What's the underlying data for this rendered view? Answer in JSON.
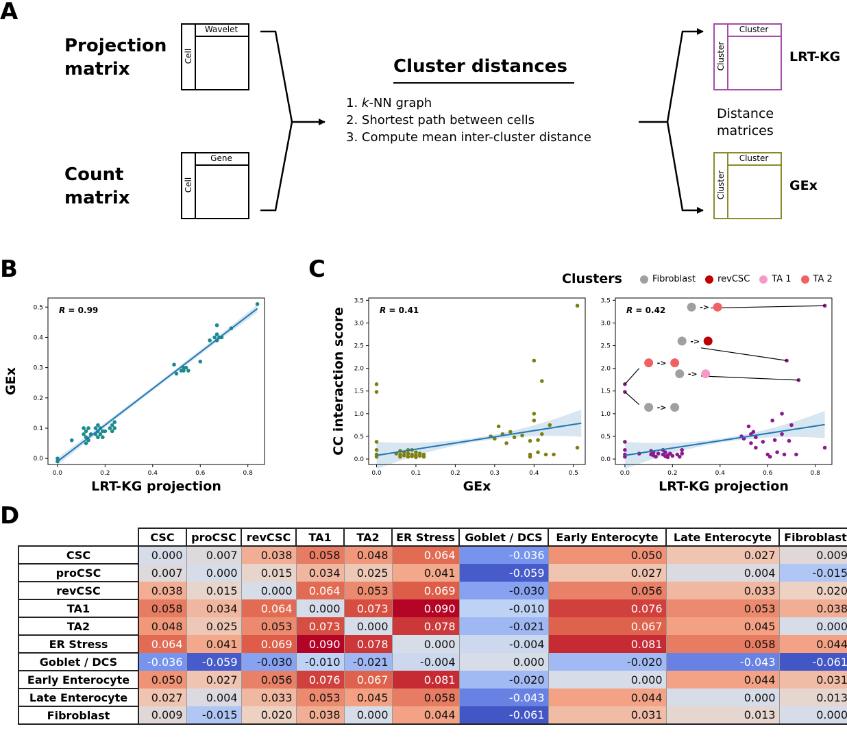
{
  "panels": {
    "a": "A",
    "b": "B",
    "c": "C",
    "d": "D"
  },
  "panel_a": {
    "projection_label_1": "Projection",
    "projection_label_2": "matrix",
    "count_label_1": "Count",
    "count_label_2": "matrix",
    "projection_matrix": {
      "col": "Wavelet",
      "row": "Cell"
    },
    "count_matrix": {
      "col": "Gene",
      "row": "Cell"
    },
    "title": "Cluster distances",
    "steps": [
      "1. ",
      "k",
      "-NN graph",
      "2. Shortest path between cells",
      "3. Compute mean inter-cluster distance"
    ],
    "lrt_matrix": {
      "col": "Cluster",
      "row": "Cluster",
      "label": "LRT-KG",
      "color": "#a64ca6"
    },
    "gex_matrix": {
      "col": "Cluster",
      "row": "Cluster",
      "label": "GEx",
      "color": "#8b8b2a"
    },
    "distance_label_1": "Distance",
    "distance_label_2": "matrices"
  },
  "chart_data": [
    {
      "id": "B",
      "type": "scatter",
      "xlabel": "LRT-KG projection",
      "ylabel": "GEx",
      "annotation": "R = 0.99",
      "annotation_italic": "R",
      "annotation_rest": " = 0.99",
      "xlim": [
        -0.04,
        0.87
      ],
      "ylim": [
        -0.02,
        0.53
      ],
      "xticks": [
        "0.0",
        "0.2",
        "0.4",
        "0.6",
        "0.8"
      ],
      "xtick_values": [
        0.0,
        0.2,
        0.4,
        0.6,
        0.8
      ],
      "yticks": [
        "0.0",
        "0.1",
        "0.2",
        "0.3",
        "0.4",
        "0.5"
      ],
      "ytick_values": [
        0.0,
        0.1,
        0.2,
        0.3,
        0.4,
        0.5
      ],
      "color": "#1a8a8a",
      "fit": [
        [
          0.0,
          -0.01
        ],
        [
          0.84,
          0.495
        ]
      ],
      "points": [
        [
          0.0,
          0.0
        ],
        [
          0.0,
          -0.01
        ],
        [
          0.06,
          0.06
        ],
        [
          0.11,
          0.08
        ],
        [
          0.11,
          0.1
        ],
        [
          0.12,
          0.05
        ],
        [
          0.12,
          0.07
        ],
        [
          0.12,
          0.09
        ],
        [
          0.13,
          0.06
        ],
        [
          0.13,
          0.1
        ],
        [
          0.14,
          0.08
        ],
        [
          0.16,
          0.08
        ],
        [
          0.16,
          0.1
        ],
        [
          0.17,
          0.07
        ],
        [
          0.17,
          0.09
        ],
        [
          0.17,
          0.11
        ],
        [
          0.18,
          0.08
        ],
        [
          0.18,
          0.1
        ],
        [
          0.19,
          0.09
        ],
        [
          0.19,
          0.07
        ],
        [
          0.2,
          0.09
        ],
        [
          0.22,
          0.1
        ],
        [
          0.23,
          0.11
        ],
        [
          0.23,
          0.09
        ],
        [
          0.24,
          0.1
        ],
        [
          0.24,
          0.12
        ],
        [
          0.49,
          0.31
        ],
        [
          0.5,
          0.28
        ],
        [
          0.52,
          0.29
        ],
        [
          0.53,
          0.3
        ],
        [
          0.53,
          0.29
        ],
        [
          0.54,
          0.3
        ],
        [
          0.55,
          0.29
        ],
        [
          0.6,
          0.32
        ],
        [
          0.64,
          0.39
        ],
        [
          0.66,
          0.4
        ],
        [
          0.67,
          0.39
        ],
        [
          0.67,
          0.41
        ],
        [
          0.68,
          0.4
        ],
        [
          0.69,
          0.4
        ],
        [
          0.67,
          0.44
        ],
        [
          0.73,
          0.43
        ],
        [
          0.84,
          0.51
        ]
      ]
    },
    {
      "id": "C-left",
      "type": "scatter",
      "xlabel": "GEx",
      "ylabel": "CC interaction score",
      "annotation_italic": "R",
      "annotation_rest": " = 0.41",
      "xlim": [
        -0.02,
        0.53
      ],
      "ylim": [
        -0.12,
        3.55
      ],
      "xticks": [
        "0.0",
        "0.1",
        "0.2",
        "0.3",
        "0.4",
        "0.5"
      ],
      "xtick_values": [
        0.0,
        0.1,
        0.2,
        0.3,
        0.4,
        0.5
      ],
      "yticks": [
        "0.0",
        "0.5",
        "1.0",
        "1.5",
        "2.0",
        "2.5",
        "3.0",
        "3.5"
      ],
      "ytick_values": [
        0.0,
        0.5,
        1.0,
        1.5,
        2.0,
        2.5,
        3.0,
        3.5
      ],
      "color": "#7f7f10",
      "fit": [
        [
          0.0,
          0.08
        ],
        [
          0.52,
          0.79
        ]
      ],
      "points": [
        [
          0.0,
          1.65
        ],
        [
          0.0,
          1.48
        ],
        [
          0.0,
          0.38
        ],
        [
          0.0,
          0.2
        ],
        [
          0.0,
          0.1
        ],
        [
          0.0,
          0.05
        ],
        [
          0.05,
          0.12
        ],
        [
          0.06,
          0.18
        ],
        [
          0.06,
          0.1
        ],
        [
          0.07,
          0.15
        ],
        [
          0.07,
          0.08
        ],
        [
          0.08,
          0.12
        ],
        [
          0.08,
          0.05
        ],
        [
          0.09,
          0.2
        ],
        [
          0.09,
          0.1
        ],
        [
          0.09,
          0.06
        ],
        [
          0.1,
          0.15
        ],
        [
          0.1,
          0.08
        ],
        [
          0.1,
          0.04
        ],
        [
          0.11,
          0.12
        ],
        [
          0.11,
          0.07
        ],
        [
          0.12,
          0.1
        ],
        [
          0.12,
          0.05
        ],
        [
          0.06,
          0.05
        ],
        [
          0.08,
          0.2
        ],
        [
          0.29,
          0.5
        ],
        [
          0.3,
          0.45
        ],
        [
          0.31,
          0.72
        ],
        [
          0.32,
          0.55
        ],
        [
          0.33,
          0.35
        ],
        [
          0.34,
          0.6
        ],
        [
          0.35,
          0.48
        ],
        [
          0.37,
          0.52
        ],
        [
          0.39,
          0.4
        ],
        [
          0.39,
          0.1
        ],
        [
          0.39,
          0.05
        ],
        [
          0.4,
          2.17
        ],
        [
          0.4,
          1.0
        ],
        [
          0.4,
          0.85
        ],
        [
          0.41,
          0.42
        ],
        [
          0.41,
          0.15
        ],
        [
          0.42,
          1.72
        ],
        [
          0.42,
          0.55
        ],
        [
          0.43,
          0.1
        ],
        [
          0.44,
          0.75
        ],
        [
          0.45,
          0.1
        ],
        [
          0.51,
          3.38
        ],
        [
          0.51,
          0.25
        ]
      ]
    },
    {
      "id": "C-right",
      "type": "scatter",
      "xlabel": "LRT-KG projection",
      "annotation_italic": "R",
      "annotation_rest": " = 0.42",
      "xlim": [
        -0.04,
        0.87
      ],
      "ylim": [
        -0.12,
        3.55
      ],
      "xticks": [
        "0.0",
        "0.2",
        "0.4",
        "0.6",
        "0.8"
      ],
      "xtick_values": [
        0.0,
        0.2,
        0.4,
        0.6,
        0.8
      ],
      "yticks": [
        "0.0",
        "0.5",
        "1.0",
        "1.5",
        "2.0",
        "2.5",
        "3.0",
        "3.5"
      ],
      "ytick_values": [
        0.0,
        0.5,
        1.0,
        1.5,
        2.0,
        2.5,
        3.0,
        3.5
      ],
      "color": "#8b1a8b",
      "fit": [
        [
          0.0,
          0.08
        ],
        [
          0.84,
          0.76
        ]
      ],
      "points": [
        [
          0.0,
          1.65
        ],
        [
          0.0,
          1.48
        ],
        [
          0.0,
          0.38
        ],
        [
          0.0,
          0.2
        ],
        [
          0.0,
          0.1
        ],
        [
          0.0,
          0.05
        ],
        [
          0.06,
          0.12
        ],
        [
          0.11,
          0.18
        ],
        [
          0.11,
          0.1
        ],
        [
          0.12,
          0.15
        ],
        [
          0.12,
          0.08
        ],
        [
          0.13,
          0.05
        ],
        [
          0.14,
          0.12
        ],
        [
          0.16,
          0.2
        ],
        [
          0.16,
          0.1
        ],
        [
          0.17,
          0.06
        ],
        [
          0.17,
          0.15
        ],
        [
          0.18,
          0.08
        ],
        [
          0.18,
          0.04
        ],
        [
          0.19,
          0.12
        ],
        [
          0.2,
          0.07
        ],
        [
          0.22,
          0.1
        ],
        [
          0.23,
          0.05
        ],
        [
          0.24,
          0.2
        ],
        [
          0.24,
          0.12
        ],
        [
          0.49,
          0.5
        ],
        [
          0.5,
          0.45
        ],
        [
          0.52,
          0.72
        ],
        [
          0.53,
          0.55
        ],
        [
          0.53,
          0.35
        ],
        [
          0.54,
          0.6
        ],
        [
          0.55,
          0.25
        ],
        [
          0.55,
          0.48
        ],
        [
          0.58,
          0.38
        ],
        [
          0.6,
          0.1
        ],
        [
          0.61,
          0.05
        ],
        [
          0.62,
          0.85
        ],
        [
          0.63,
          0.42
        ],
        [
          0.64,
          0.15
        ],
        [
          0.66,
          1.0
        ],
        [
          0.66,
          0.55
        ],
        [
          0.67,
          0.1
        ],
        [
          0.68,
          2.17
        ],
        [
          0.69,
          0.4
        ],
        [
          0.7,
          0.75
        ],
        [
          0.72,
          0.1
        ],
        [
          0.73,
          1.74
        ],
        [
          0.84,
          3.38
        ],
        [
          0.84,
          0.25
        ]
      ]
    }
  ],
  "clusters_legend": {
    "title": "Clusters",
    "items": [
      {
        "name": "Fibroblast",
        "color": "#a0a0a0"
      },
      {
        "name": "revCSC",
        "color": "#c00000"
      },
      {
        "name": "TA 1",
        "color": "#f59ac8"
      },
      {
        "name": "TA 2",
        "color": "#f26161"
      }
    ]
  },
  "arrow_text": "->",
  "heatmap": {
    "columns": [
      "CSC",
      "proCSC",
      "revCSC",
      "TA1",
      "TA2",
      "ER Stress",
      "Goblet / DCS",
      "Early Enterocyte",
      "Late Enterocyte",
      "Fibroblast"
    ],
    "rows": [
      {
        "name": "CSC",
        "values": [
          "0.000",
          "0.007",
          "0.038",
          "0.058",
          "0.048",
          "0.064",
          "-0.036",
          "0.050",
          "0.027",
          "0.009"
        ]
      },
      {
        "name": "proCSC",
        "values": [
          "0.007",
          "0.000",
          "0.015",
          "0.034",
          "0.025",
          "0.041",
          "-0.059",
          "0.027",
          "0.004",
          "-0.015"
        ]
      },
      {
        "name": "revCSC",
        "values": [
          "0.038",
          "0.015",
          "0.000",
          "0.064",
          "0.053",
          "0.069",
          "-0.030",
          "0.056",
          "0.033",
          "0.020"
        ]
      },
      {
        "name": "TA1",
        "values": [
          "0.058",
          "0.034",
          "0.064",
          "0.000",
          "0.073",
          "0.090",
          "-0.010",
          "0.076",
          "0.053",
          "0.038"
        ]
      },
      {
        "name": "TA2",
        "values": [
          "0.048",
          "0.025",
          "0.053",
          "0.073",
          "0.000",
          "0.078",
          "-0.021",
          "0.067",
          "0.045",
          "0.000"
        ]
      },
      {
        "name": "ER Stress",
        "values": [
          "0.064",
          "0.041",
          "0.069",
          "0.090",
          "0.078",
          "0.000",
          "-0.004",
          "0.081",
          "0.058",
          "0.044"
        ]
      },
      {
        "name": "Goblet / DCS",
        "values": [
          "-0.036",
          "-0.059",
          "-0.030",
          "-0.010",
          "-0.021",
          "-0.004",
          "0.000",
          "-0.020",
          "-0.043",
          "-0.061"
        ]
      },
      {
        "name": "Early Enterocyte",
        "values": [
          "0.050",
          "0.027",
          "0.056",
          "0.076",
          "0.067",
          "0.081",
          "-0.020",
          "0.000",
          "0.044",
          "0.031"
        ]
      },
      {
        "name": "Late Enterocyte",
        "values": [
          "0.027",
          "0.004",
          "0.033",
          "0.053",
          "0.045",
          "0.058",
          "-0.043",
          "0.044",
          "0.000",
          "0.013"
        ]
      },
      {
        "name": "Fibroblast",
        "values": [
          "0.009",
          "-0.015",
          "0.020",
          "0.038",
          "0.000",
          "0.044",
          "-0.061",
          "0.031",
          "0.013",
          "0.000"
        ]
      }
    ]
  }
}
